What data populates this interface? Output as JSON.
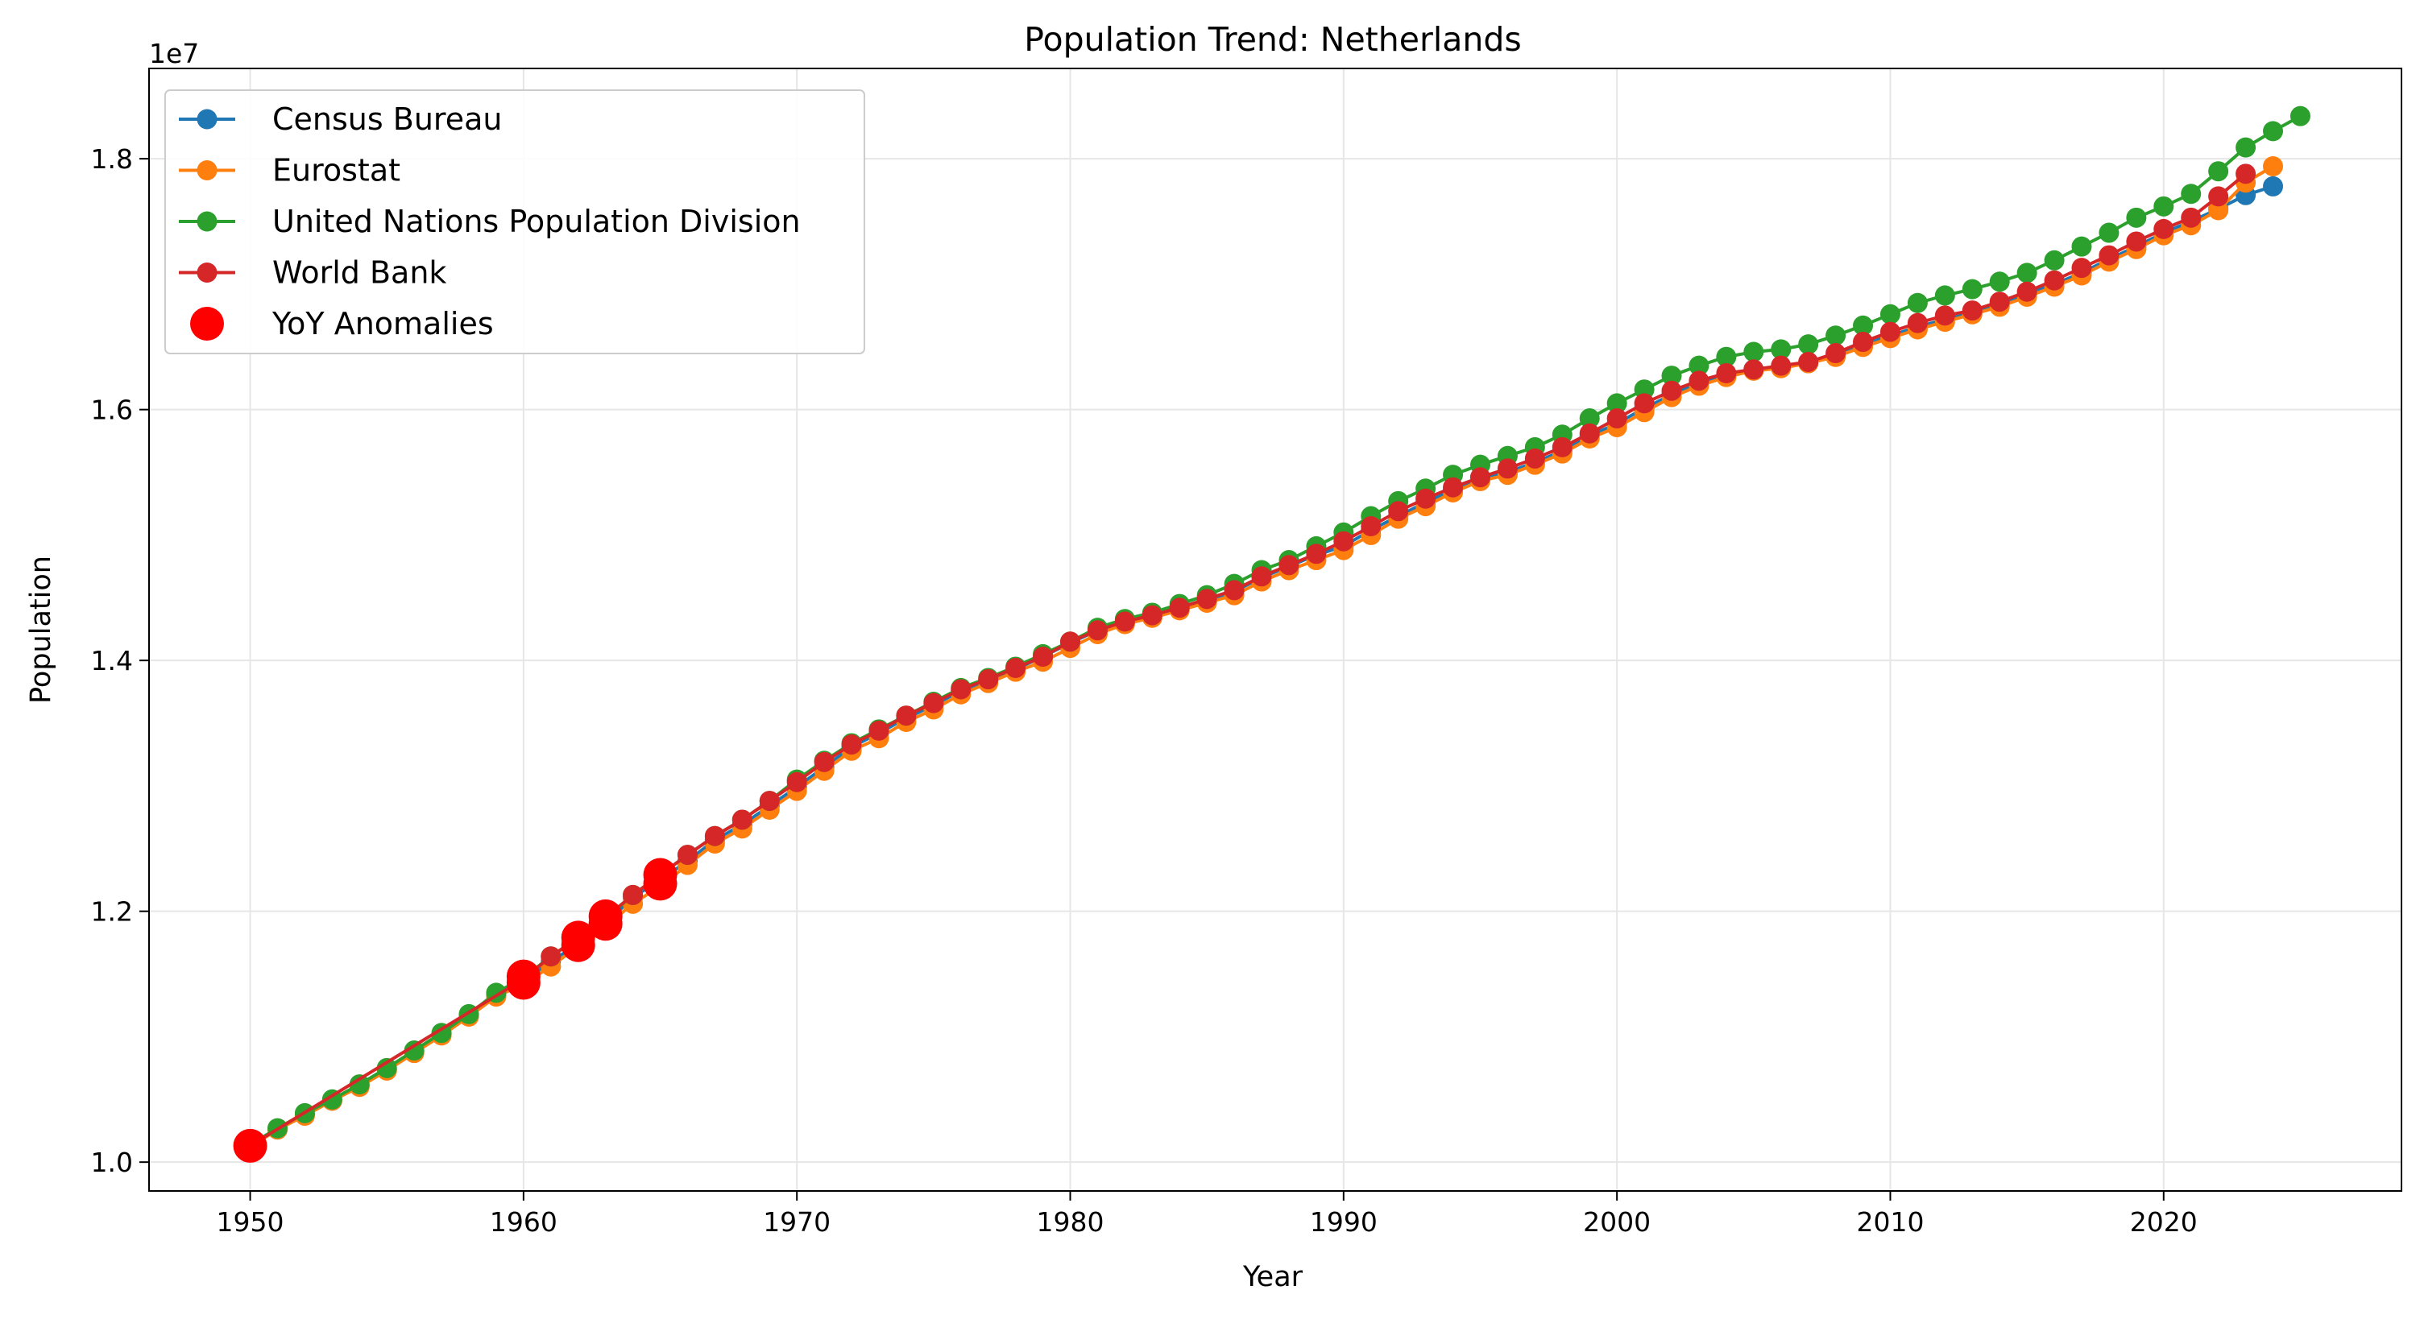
{
  "chart_data": {
    "type": "line",
    "title": "Population Trend: Netherlands",
    "xlabel": "Year",
    "ylabel": "Population",
    "y_offset_label": "1e7",
    "xlim": [
      1946.3,
      2028.7
    ],
    "ylim": [
      9770000,
      18720000
    ],
    "x_ticks": [
      1950,
      1960,
      1970,
      1980,
      1990,
      2000,
      2010,
      2020
    ],
    "x_tick_labels": [
      "1950",
      "1960",
      "1970",
      "1980",
      "1990",
      "2000",
      "2010",
      "2020"
    ],
    "y_ticks": [
      10000000,
      12000000,
      14000000,
      16000000,
      18000000
    ],
    "y_tick_labels": [
      "1.0",
      "1.2",
      "1.4",
      "1.6",
      "1.8"
    ],
    "grid": true,
    "legend_position": "top-left",
    "series": [
      {
        "name": "Census Bureau",
        "color": "#1f77b4",
        "x": [
          1950,
          1951,
          1952,
          1953,
          1954,
          1955,
          1956,
          1957,
          1958,
          1959,
          1960,
          1961,
          1962,
          1963,
          1964,
          1965,
          1966,
          1967,
          1968,
          1969,
          1970,
          1971,
          1972,
          1973,
          1974,
          1975,
          1976,
          1977,
          1978,
          1979,
          1980,
          1981,
          1982,
          1983,
          1984,
          1985,
          1986,
          1987,
          1988,
          1989,
          1990,
          1991,
          1992,
          1993,
          1994,
          1995,
          1996,
          1997,
          1998,
          1999,
          2000,
          2001,
          2002,
          2003,
          2004,
          2005,
          2006,
          2007,
          2008,
          2009,
          2010,
          2011,
          2012,
          2013,
          2014,
          2015,
          2016,
          2017,
          2018,
          2019,
          2020,
          2021,
          2022,
          2023,
          2024
        ],
        "y": [
          10130000,
          10260000,
          10380000,
          10490000,
          10610000,
          10740000,
          10880000,
          11020000,
          11170000,
          11330000,
          11440000,
          11600000,
          11740000,
          11900000,
          12110000,
          12250000,
          12400000,
          12570000,
          12690000,
          12840000,
          12990000,
          13150000,
          13310000,
          13420000,
          13540000,
          13640000,
          13760000,
          13840000,
          13930000,
          14030000,
          14140000,
          14240000,
          14310000,
          14360000,
          14420000,
          14480000,
          14550000,
          14660000,
          14750000,
          14840000,
          14910000,
          15040000,
          15150000,
          15260000,
          15360000,
          15460000,
          15500000,
          15580000,
          15670000,
          15790000,
          15890000,
          16010000,
          16120000,
          16210000,
          16280000,
          16320000,
          16340000,
          16370000,
          16440000,
          16520000,
          16590000,
          16660000,
          16720000,
          16770000,
          16840000,
          16920000,
          17000000,
          17090000,
          17200000,
          17300000,
          17410000,
          17500000,
          17600000,
          17710000,
          17780000
        ]
      },
      {
        "name": "Eurostat",
        "color": "#ff7f0e",
        "x": [
          1950,
          1951,
          1952,
          1953,
          1954,
          1955,
          1956,
          1957,
          1958,
          1959,
          1960,
          1961,
          1962,
          1963,
          1964,
          1965,
          1966,
          1967,
          1968,
          1969,
          1970,
          1971,
          1972,
          1973,
          1974,
          1975,
          1976,
          1977,
          1978,
          1979,
          1980,
          1981,
          1982,
          1983,
          1984,
          1985,
          1986,
          1987,
          1988,
          1989,
          1990,
          1991,
          1992,
          1993,
          1994,
          1995,
          1996,
          1997,
          1998,
          1999,
          2000,
          2001,
          2002,
          2003,
          2004,
          2005,
          2006,
          2007,
          2008,
          2009,
          2010,
          2011,
          2012,
          2013,
          2014,
          2015,
          2016,
          2017,
          2018,
          2019,
          2020,
          2021,
          2022,
          2023,
          2024
        ],
        "y": [
          10120000,
          10260000,
          10370000,
          10490000,
          10600000,
          10730000,
          10870000,
          11010000,
          11160000,
          11320000,
          11420000,
          11560000,
          11720000,
          11880000,
          12060000,
          12200000,
          12370000,
          12540000,
          12660000,
          12810000,
          12960000,
          13120000,
          13280000,
          13380000,
          13510000,
          13610000,
          13730000,
          13820000,
          13910000,
          13990000,
          14100000,
          14210000,
          14290000,
          14340000,
          14400000,
          14460000,
          14520000,
          14630000,
          14720000,
          14800000,
          14880000,
          15000000,
          15130000,
          15230000,
          15340000,
          15430000,
          15480000,
          15560000,
          15650000,
          15770000,
          15860000,
          15980000,
          16100000,
          16190000,
          16260000,
          16310000,
          16330000,
          16370000,
          16420000,
          16500000,
          16570000,
          16640000,
          16700000,
          16760000,
          16820000,
          16900000,
          16980000,
          17070000,
          17180000,
          17280000,
          17390000,
          17470000,
          17590000,
          17810000,
          17940000
        ]
      },
      {
        "name": "United Nations Population Division",
        "color": "#2ca02c",
        "x": [
          1950,
          1951,
          1952,
          1953,
          1954,
          1955,
          1956,
          1957,
          1958,
          1959,
          1960,
          1961,
          1962,
          1963,
          1964,
          1965,
          1966,
          1967,
          1968,
          1969,
          1970,
          1971,
          1972,
          1973,
          1974,
          1975,
          1976,
          1977,
          1978,
          1979,
          1980,
          1981,
          1982,
          1983,
          1984,
          1985,
          1986,
          1987,
          1988,
          1989,
          1990,
          1991,
          1992,
          1993,
          1994,
          1995,
          1996,
          1997,
          1998,
          1999,
          2000,
          2001,
          2002,
          2003,
          2004,
          2005,
          2006,
          2007,
          2008,
          2009,
          2010,
          2011,
          2012,
          2013,
          2014,
          2015,
          2016,
          2017,
          2018,
          2019,
          2020,
          2021,
          2022,
          2023,
          2024,
          2025
        ],
        "y": [
          10140000,
          10270000,
          10390000,
          10500000,
          10620000,
          10750000,
          10890000,
          11030000,
          11180000,
          11350000,
          11470000,
          11640000,
          11780000,
          11940000,
          12130000,
          12290000,
          12450000,
          12600000,
          12730000,
          12880000,
          13050000,
          13200000,
          13340000,
          13450000,
          13560000,
          13670000,
          13780000,
          13860000,
          13950000,
          14050000,
          14150000,
          14260000,
          14330000,
          14380000,
          14450000,
          14520000,
          14610000,
          14720000,
          14800000,
          14910000,
          15020000,
          15150000,
          15270000,
          15370000,
          15480000,
          15560000,
          15630000,
          15700000,
          15800000,
          15930000,
          16050000,
          16160000,
          16270000,
          16350000,
          16420000,
          16460000,
          16480000,
          16520000,
          16590000,
          16670000,
          16760000,
          16850000,
          16910000,
          16960000,
          17020000,
          17090000,
          17190000,
          17300000,
          17410000,
          17530000,
          17620000,
          17720000,
          17900000,
          18090000,
          18220000,
          18340000
        ]
      },
      {
        "name": "World Bank",
        "color": "#d62728",
        "x": [
          1950,
          1960,
          1961,
          1962,
          1963,
          1964,
          1965,
          1966,
          1967,
          1968,
          1969,
          1970,
          1971,
          1972,
          1973,
          1974,
          1975,
          1976,
          1977,
          1978,
          1979,
          1980,
          1981,
          1982,
          1983,
          1984,
          1985,
          1986,
          1987,
          1988,
          1989,
          1990,
          1991,
          1992,
          1993,
          1994,
          1995,
          1996,
          1997,
          1998,
          1999,
          2000,
          2001,
          2002,
          2003,
          2004,
          2005,
          2006,
          2007,
          2008,
          2009,
          2010,
          2011,
          2012,
          2013,
          2014,
          2015,
          2016,
          2017,
          2018,
          2019,
          2020,
          2021,
          2022,
          2023
        ],
        "y": [
          10130000,
          11460000,
          11640000,
          11790000,
          11950000,
          12130000,
          12290000,
          12450000,
          12600000,
          12730000,
          12880000,
          13030000,
          13190000,
          13330000,
          13440000,
          13560000,
          13660000,
          13770000,
          13850000,
          13940000,
          14030000,
          14150000,
          14240000,
          14310000,
          14360000,
          14420000,
          14490000,
          14560000,
          14670000,
          14760000,
          14850000,
          14950000,
          15070000,
          15190000,
          15290000,
          15380000,
          15460000,
          15530000,
          15610000,
          15700000,
          15810000,
          15930000,
          16050000,
          16150000,
          16230000,
          16290000,
          16320000,
          16350000,
          16380000,
          16450000,
          16540000,
          16620000,
          16690000,
          16750000,
          16790000,
          16860000,
          16940000,
          17030000,
          17130000,
          17230000,
          17340000,
          17440000,
          17530000,
          17700000,
          17880000
        ]
      }
    ],
    "anomalies": {
      "name": "YoY Anomalies",
      "color": "#ff0000",
      "points": [
        {
          "x": 1950,
          "y": 10130000
        },
        {
          "x": 1960,
          "y": 11430000
        },
        {
          "x": 1960,
          "y": 11480000
        },
        {
          "x": 1962,
          "y": 11730000
        },
        {
          "x": 1962,
          "y": 11790000
        },
        {
          "x": 1963,
          "y": 11900000
        },
        {
          "x": 1963,
          "y": 11960000
        },
        {
          "x": 1965,
          "y": 12220000
        },
        {
          "x": 1965,
          "y": 12290000
        }
      ]
    }
  }
}
